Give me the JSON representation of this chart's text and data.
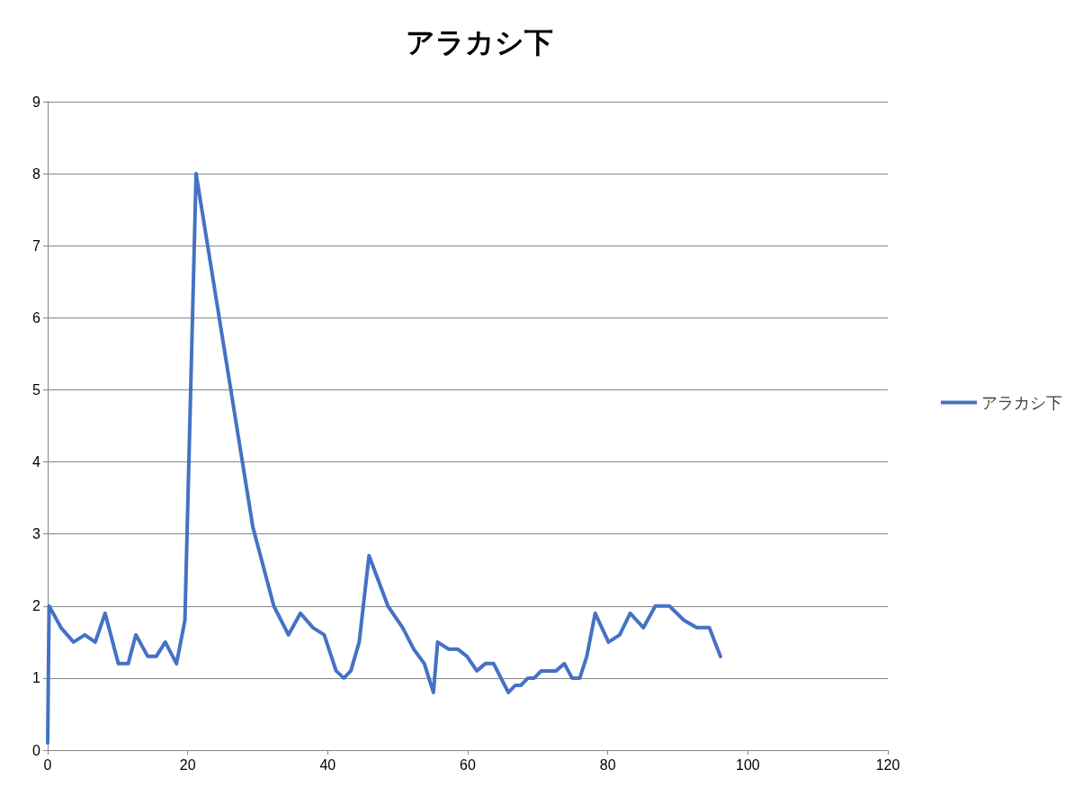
{
  "chart_data": {
    "type": "line",
    "title": "アラカシ下",
    "xlim": [
      0,
      120
    ],
    "xticks": [
      0,
      20,
      40,
      60,
      80,
      100,
      120
    ],
    "ylim": [
      0,
      9
    ],
    "yticks": [
      0,
      1,
      2,
      3,
      4,
      5,
      6,
      7,
      8,
      9
    ],
    "grid": "y",
    "legend": "right",
    "marker": "none",
    "line_style": "solid",
    "series": [
      {
        "name": "アラカシ下",
        "color": "#4472c4",
        "x": [
          0,
          0.2,
          1.9,
          3.7,
          5.3,
          6.8,
          8.2,
          10.1,
          11.5,
          12.6,
          14.3,
          15.5,
          16.8,
          18.4,
          19.6,
          21.2,
          29.3,
          32.3,
          34.4,
          36.1,
          37.9,
          39.5,
          41.2,
          42.3,
          43.3,
          44.5,
          45.9,
          48.6,
          50.7,
          52.3,
          53.8,
          55.1,
          55.7,
          57.3,
          58.6,
          59.9,
          61.3,
          62.5,
          63.7,
          65.8,
          66.8,
          67.6,
          68.6,
          69.5,
          70.5,
          72.6,
          73.8,
          74.9,
          76,
          77,
          78.2,
          80.1,
          81.7,
          83.2,
          85.1,
          86.8,
          88.8,
          90.9,
          92.7,
          94.5,
          96.1
        ],
        "values": [
          0.1,
          2,
          1.7,
          1.5,
          1.6,
          1.5,
          1.9,
          1.2,
          1.2,
          1.6,
          1.3,
          1.3,
          1.5,
          1.2,
          1.8,
          8,
          3.1,
          2,
          1.6,
          1.9,
          1.7,
          1.6,
          1.1,
          1,
          1.1,
          1.5,
          2.7,
          2,
          1.7,
          1.4,
          1.2,
          0.8,
          1.5,
          1.4,
          1.4,
          1.3,
          1.1,
          1.2,
          1.2,
          0.8,
          0.9,
          0.9,
          1,
          1,
          1.1,
          1.1,
          1.2,
          1,
          1,
          1.3,
          1.9,
          1.5,
          1.6,
          1.9,
          1.7,
          2,
          2,
          1.8,
          1.7,
          1.7,
          1.3
        ]
      }
    ]
  }
}
